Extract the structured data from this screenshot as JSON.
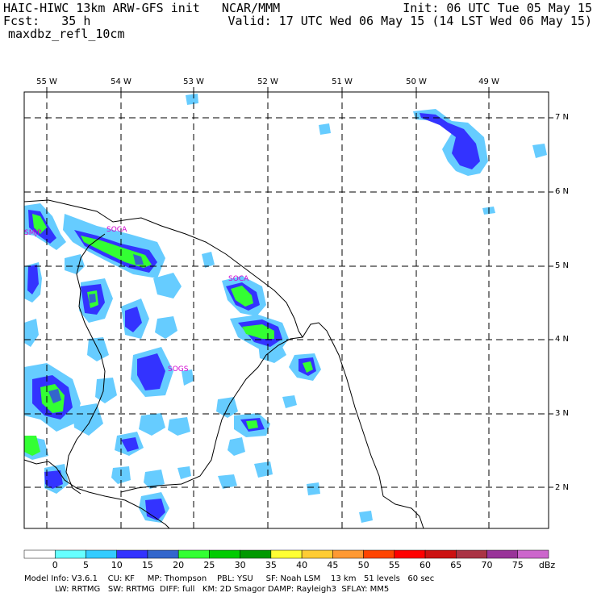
{
  "header": {
    "line1_left": "HAIC-HIWC 13km ARW-GFS init   NCAR/MMM",
    "line1_right": "Init: 06 UTC Tue 05 May 15",
    "line2_left": "Fcst:   35 h",
    "line2_right": "Valid: 17 UTC Wed 06 May 15 (14 LST Wed 06 May 15)",
    "field_name": "maxdbz_refl_10cm"
  },
  "longitude_labels": [
    "55 W",
    "54 W",
    "53 W",
    "52 W",
    "51 W",
    "50 W",
    "49 W"
  ],
  "latitude_labels": [
    "7 N",
    "6 N",
    "5 N",
    "4 N",
    "3 N",
    "2 N"
  ],
  "stations": [
    {
      "name": "SMJP"
    },
    {
      "name": "SOCA"
    },
    {
      "name": "SOCA"
    },
    {
      "name": "SOGS"
    }
  ],
  "colorbar": {
    "levels": [
      "0",
      "5",
      "10",
      "15",
      "20",
      "25",
      "30",
      "35",
      "40",
      "45",
      "50",
      "55",
      "60",
      "65",
      "70",
      "75"
    ],
    "units": "dBz",
    "colors": [
      "#ffffff",
      "#66ffff",
      "#33ccff",
      "#3333ff",
      "#3366cc",
      "#33ff33",
      "#00cc00",
      "#009900",
      "#ffff33",
      "#ffcc33",
      "#ff9933",
      "#ff3300",
      "#ff0000",
      "#cc0000",
      "#aa3333",
      "#aa4477",
      "#993399",
      "#cc66cc"
    ]
  },
  "footer": {
    "line1": "Model Info: V3.6.1    CU: KF     MP: Thompson    PBL: YSU     SF: Noah LSM    13 km   51 levels   60 sec",
    "line2": "            LW: RRTMG   SW: RRTMG  DIFF: full   KM: 2D Smagor DAMP: Rayleigh3  SFLAY: MM5"
  },
  "legend_colors": {
    "light_blue": "#66ccff",
    "blue": "#3333ff",
    "steel": "#3366cc",
    "green": "#33ff33",
    "dark_green": "#00cc00"
  }
}
